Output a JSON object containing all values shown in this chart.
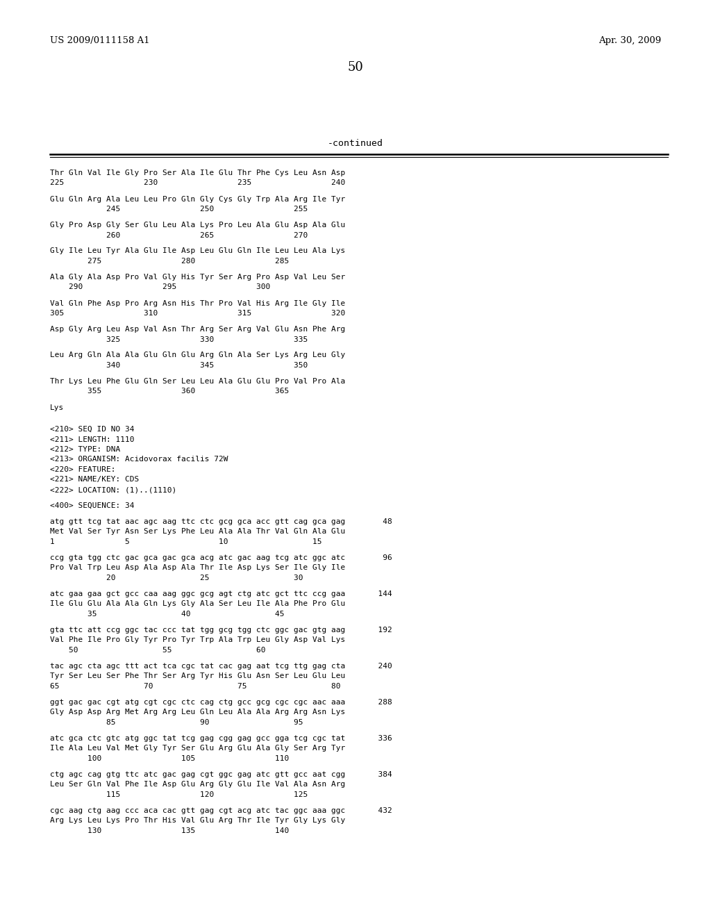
{
  "background_color": "#ffffff",
  "top_left_text": "US 2009/0111158 A1",
  "top_right_text": "Apr. 30, 2009",
  "page_number": "50",
  "continued_text": "-continued",
  "content_lines": [
    "Thr Gln Val Ile Gly Pro Ser Ala Ile Glu Thr Phe Cys Leu Asn Asp",
    "225                 230                 235                 240",
    "",
    "Glu Gln Arg Ala Leu Leu Pro Gln Gly Cys Gly Trp Ala Arg Ile Tyr",
    "            245                 250                 255",
    "",
    "Gly Pro Asp Gly Ser Glu Leu Ala Lys Pro Leu Ala Glu Asp Ala Glu",
    "            260                 265                 270",
    "",
    "Gly Ile Leu Tyr Ala Glu Ile Asp Leu Glu Gln Ile Leu Leu Ala Lys",
    "        275                 280                 285",
    "",
    "Ala Gly Ala Asp Pro Val Gly His Tyr Ser Arg Pro Asp Val Leu Ser",
    "    290                 295                 300",
    "",
    "Val Gln Phe Asp Pro Arg Asn His Thr Pro Val His Arg Ile Gly Ile",
    "305                 310                 315                 320",
    "",
    "Asp Gly Arg Leu Asp Val Asn Thr Arg Ser Arg Val Glu Asn Phe Arg",
    "            325                 330                 335",
    "",
    "Leu Arg Gln Ala Ala Glu Gln Glu Arg Gln Ala Ser Lys Arg Leu Gly",
    "            340                 345                 350",
    "",
    "Thr Lys Leu Phe Glu Gln Ser Leu Leu Ala Glu Glu Pro Val Pro Ala",
    "        355                 360                 365",
    "",
    "Lys",
    "",
    "",
    "<210> SEQ ID NO 34",
    "<211> LENGTH: 1110",
    "<212> TYPE: DNA",
    "<213> ORGANISM: Acidovorax facilis 72W",
    "<220> FEATURE:",
    "<221> NAME/KEY: CDS",
    "<222> LOCATION: (1)..(1110)",
    "",
    "<400> SEQUENCE: 34",
    "",
    "atg gtt tcg tat aac agc aag ttc ctc gcg gca acc gtt cag gca gag        48",
    "Met Val Ser Tyr Asn Ser Lys Phe Leu Ala Ala Thr Val Gln Ala Glu",
    "1               5                   10                  15",
    "",
    "ccg gta tgg ctc gac gca gac gca acg atc gac aag tcg atc ggc atc        96",
    "Pro Val Trp Leu Asp Ala Asp Ala Thr Ile Asp Lys Ser Ile Gly Ile",
    "            20                  25                  30",
    "",
    "atc gaa gaa gct gcc caa aag ggc gcg agt ctg atc gct ttc ccg gaa       144",
    "Ile Glu Glu Ala Ala Gln Lys Gly Ala Ser Leu Ile Ala Phe Pro Glu",
    "        35                  40                  45",
    "",
    "gta ttc att ccg ggc tac ccc tat tgg gcg tgg ctc ggc gac gtg aag       192",
    "Val Phe Ile Pro Gly Tyr Pro Tyr Trp Ala Trp Leu Gly Asp Val Lys",
    "    50                  55                  60",
    "",
    "tac agc cta agc ttt act tca cgc tat cac gag aat tcg ttg gag cta       240",
    "Tyr Ser Leu Ser Phe Thr Ser Arg Tyr His Glu Asn Ser Leu Glu Leu",
    "65                  70                  75                  80",
    "",
    "ggt gac gac cgt atg cgt cgc ctc cag ctg gcc gcg cgc cgc aac aaa       288",
    "Gly Asp Asp Arg Met Arg Arg Leu Gln Leu Ala Ala Arg Arg Asn Lys",
    "            85                  90                  95",
    "",
    "atc gca ctc gtc atg ggc tat tcg gag cgg gag gcc gga tcg cgc tat       336",
    "Ile Ala Leu Val Met Gly Tyr Ser Glu Arg Glu Ala Gly Ser Arg Tyr",
    "        100                 105                 110",
    "",
    "ctg agc cag gtg ttc atc gac gag cgt ggc gag atc gtt gcc aat cgg       384",
    "Leu Ser Gln Val Phe Ile Asp Glu Arg Gly Glu Ile Val Ala Asn Arg",
    "            115                 120                 125",
    "",
    "cgc aag ctg aag ccc aca cac gtt gag cgt acg atc tac ggc aaa ggc       432",
    "Arg Lys Leu Lys Pro Thr His Val Glu Arg Thr Ile Tyr Gly Lys Gly",
    "        130                 135                 140"
  ],
  "font_size_header": 9.5,
  "font_size_body": 8.0,
  "font_size_page_num": 13,
  "font_size_continued": 9.5,
  "monospace_font": "DejaVu Sans Mono"
}
